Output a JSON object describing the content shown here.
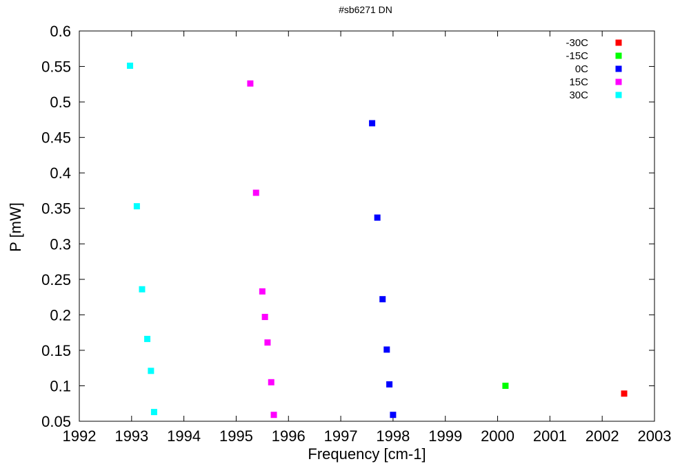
{
  "chart_data": {
    "type": "scatter",
    "title": "#sb6271 DN",
    "xlabel": "Frequency [cm-1]",
    "ylabel": "P [mW]",
    "xlim": [
      1992,
      2003
    ],
    "ylim": [
      0.05,
      0.6
    ],
    "x_ticks": [
      "1992",
      "1993",
      "1994",
      "1995",
      "1996",
      "1997",
      "1998",
      "1999",
      "2000",
      "2001",
      "2002",
      "2003"
    ],
    "y_ticks": [
      "0.05",
      "0.1",
      "0.15",
      "0.2",
      "0.25",
      "0.3",
      "0.35",
      "0.4",
      "0.45",
      "0.5",
      "0.55",
      "0.6"
    ],
    "grid": false,
    "legend_position": "top-right",
    "series": [
      {
        "name": "-30C",
        "color": "#ff0000",
        "points": [
          [
            2002.42,
            0.089
          ]
        ]
      },
      {
        "name": "-15C",
        "color": "#00ff00",
        "points": [
          [
            2000.15,
            0.1
          ]
        ]
      },
      {
        "name": "0C",
        "color": "#0000ff",
        "points": [
          [
            1997.6,
            0.47
          ],
          [
            1997.7,
            0.337
          ],
          [
            1997.8,
            0.222
          ],
          [
            1997.88,
            0.151
          ],
          [
            1997.93,
            0.102
          ],
          [
            1998.0,
            0.059
          ]
        ]
      },
      {
        "name": "15C",
        "color": "#ff00ff",
        "points": [
          [
            1995.27,
            0.526
          ],
          [
            1995.38,
            0.372
          ],
          [
            1995.5,
            0.233
          ],
          [
            1995.55,
            0.197
          ],
          [
            1995.6,
            0.161
          ],
          [
            1995.67,
            0.105
          ],
          [
            1995.72,
            0.059
          ]
        ]
      },
      {
        "name": "30C",
        "color": "#00ffff",
        "points": [
          [
            1992.97,
            0.551
          ],
          [
            1993.1,
            0.353
          ],
          [
            1993.2,
            0.236
          ],
          [
            1993.3,
            0.166
          ],
          [
            1993.37,
            0.121
          ],
          [
            1993.43,
            0.063
          ]
        ]
      }
    ]
  }
}
